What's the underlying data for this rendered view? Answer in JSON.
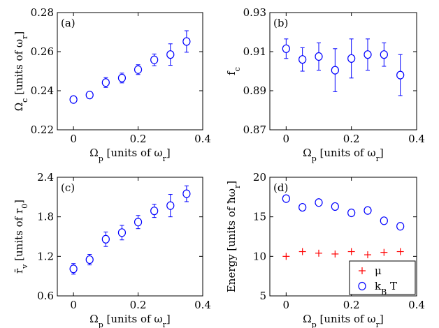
{
  "colors": {
    "circle_series": "#0000ff",
    "plus_series": "#ff0000",
    "axes": "#000000"
  },
  "chart_data": [
    {
      "type": "scatter",
      "panel_label": "(a)",
      "xlabel": "Ω_p [units of ω_r]",
      "ylabel": "Ω_c [units of ω_r]",
      "xlim": [
        -0.05,
        0.4
      ],
      "ylim": [
        0.22,
        0.28
      ],
      "xticks": [
        0,
        0.2,
        0.4
      ],
      "xtick_labels": [
        "0",
        "0.2",
        "0.4"
      ],
      "yticks": [
        0.22,
        0.24,
        0.26,
        0.28
      ],
      "ytick_labels": [
        "0.22",
        "0.24",
        "0.26",
        "0.28"
      ],
      "grid": false,
      "series": [
        {
          "marker": "circle",
          "color": "#0000ff",
          "x": [
            0,
            0.05,
            0.1,
            0.15,
            0.2,
            0.25,
            0.3,
            0.35
          ],
          "y": [
            0.2355,
            0.2378,
            0.2442,
            0.2465,
            0.2508,
            0.2558,
            0.2585,
            0.2652
          ],
          "yerr": [
            0.0015,
            0.0015,
            0.0025,
            0.0025,
            0.0025,
            0.003,
            0.0055,
            0.0055
          ]
        }
      ]
    },
    {
      "type": "scatter",
      "panel_label": "(b)",
      "xlabel": "Ω_p [units of ω_r]",
      "ylabel": "f_c",
      "xlim": [
        -0.05,
        0.4
      ],
      "ylim": [
        0.87,
        0.93
      ],
      "xticks": [
        0,
        0.2,
        0.4
      ],
      "xtick_labels": [
        "0",
        "0.2",
        "0.4"
      ],
      "yticks": [
        0.87,
        0.89,
        0.91,
        0.93
      ],
      "ytick_labels": [
        "0.87",
        "0.89",
        "0.91",
        "0.93"
      ],
      "grid": false,
      "series": [
        {
          "marker": "circle",
          "color": "#0000ff",
          "x": [
            0,
            0.05,
            0.1,
            0.15,
            0.2,
            0.25,
            0.3,
            0.35
          ],
          "y": [
            0.9115,
            0.906,
            0.9075,
            0.9005,
            0.9065,
            0.9085,
            0.9085,
            0.898
          ],
          "yerr": [
            0.005,
            0.006,
            0.007,
            0.011,
            0.01,
            0.008,
            0.006,
            0.0105
          ]
        }
      ]
    },
    {
      "type": "scatter",
      "panel_label": "(c)",
      "xlabel": "Ω_p [units of ω_r]",
      "ylabel": "r̄_v [units of r_0]",
      "xlim": [
        -0.05,
        0.4
      ],
      "ylim": [
        0.6,
        2.4
      ],
      "xticks": [
        0,
        0.2,
        0.4
      ],
      "xtick_labels": [
        "0",
        "0.2",
        "0.4"
      ],
      "yticks": [
        0.6,
        1.2,
        1.8,
        2.4
      ],
      "ytick_labels": [
        "0.6",
        "1.2",
        "1.8",
        "2.4"
      ],
      "grid": false,
      "series": [
        {
          "marker": "circle",
          "color": "#0000ff",
          "x": [
            0,
            0.05,
            0.1,
            0.15,
            0.2,
            0.25,
            0.3,
            0.35
          ],
          "y": [
            1.01,
            1.15,
            1.46,
            1.56,
            1.72,
            1.89,
            1.97,
            2.15
          ],
          "yerr": [
            0.08,
            0.08,
            0.11,
            0.11,
            0.1,
            0.1,
            0.17,
            0.12
          ]
        }
      ]
    },
    {
      "type": "scatter",
      "panel_label": "(d)",
      "xlabel": "Ω_p [units of ω_r]",
      "ylabel": "Energy [units of ħω_r]",
      "xlim": [
        -0.05,
        0.4
      ],
      "ylim": [
        5,
        20
      ],
      "xticks": [
        0,
        0.2,
        0.4
      ],
      "xtick_labels": [
        "0",
        "0.2",
        "0.4"
      ],
      "yticks": [
        5,
        10,
        15,
        20
      ],
      "ytick_labels": [
        "5",
        "10",
        "15",
        "20"
      ],
      "grid": false,
      "legend_position": "bottom-right",
      "series": [
        {
          "name": "μ",
          "marker": "plus",
          "color": "#ff0000",
          "x": [
            0,
            0.05,
            0.1,
            0.15,
            0.2,
            0.25,
            0.3,
            0.35
          ],
          "y": [
            10.0,
            10.6,
            10.4,
            10.3,
            10.6,
            10.2,
            10.5,
            10.6
          ]
        },
        {
          "name": "k_B T",
          "marker": "circle",
          "color": "#0000ff",
          "x": [
            0,
            0.05,
            0.1,
            0.15,
            0.2,
            0.25,
            0.3,
            0.35
          ],
          "y": [
            17.3,
            16.2,
            16.8,
            16.3,
            15.5,
            15.8,
            14.5,
            13.8
          ]
        }
      ]
    }
  ]
}
